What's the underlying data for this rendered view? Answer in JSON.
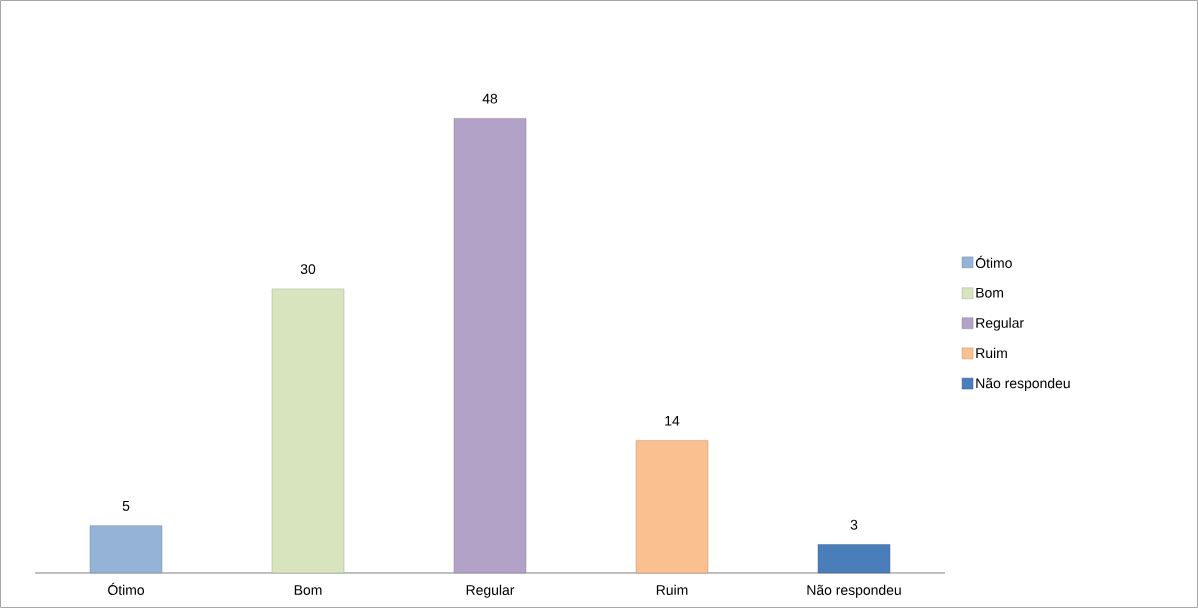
{
  "chart_data": {
    "type": "bar",
    "categories": [
      "Ótimo",
      "Bom",
      "Regular",
      "Ruim",
      "Não respondeu"
    ],
    "series": [
      {
        "name": "Ótimo",
        "color": "#95b3d7",
        "values": [
          5,
          null,
          null,
          null,
          null
        ]
      },
      {
        "name": "Bom",
        "color": "#d7e4bd",
        "values": [
          null,
          30,
          null,
          null,
          null
        ]
      },
      {
        "name": "Regular",
        "color": "#b3a2c7",
        "values": [
          null,
          null,
          48,
          null,
          null
        ]
      },
      {
        "name": "Ruim",
        "color": "#fac090",
        "values": [
          null,
          null,
          null,
          14,
          null
        ]
      },
      {
        "name": "Não respondeu",
        "color": "#4a7ebb",
        "values": [
          null,
          null,
          null,
          null,
          3
        ]
      }
    ],
    "data_labels": true,
    "legend": "right"
  }
}
